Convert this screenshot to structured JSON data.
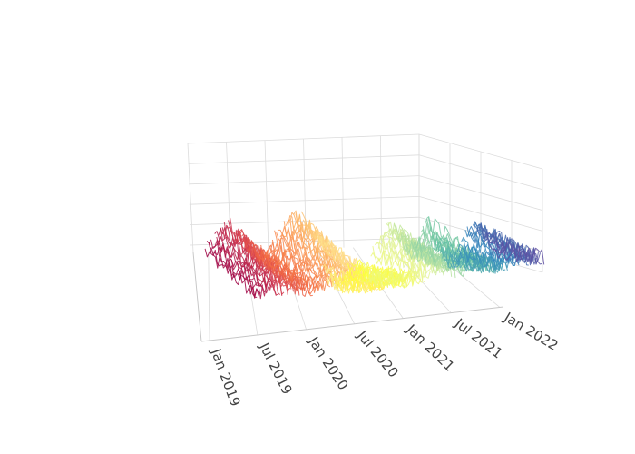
{
  "chart_data": {
    "type": "line",
    "projection": "3d",
    "x_axis_tick_labels": [
      "Jan 2019",
      "Jul 2019",
      "Jan 2020",
      "Jul 2020",
      "Jan 2021",
      "Jul 2021",
      "Jan 2022"
    ],
    "x_range": [
      "2018-12-01",
      "2022-01-15"
    ],
    "colorscale": "Spectral",
    "colorscale_stops": [
      "#9e0142",
      "#d53e4f",
      "#f46d43",
      "#fdae61",
      "#fee08b",
      "#ffff33",
      "#e6f598",
      "#abdda4",
      "#66c2a5",
      "#3288bd",
      "#5e4fa2"
    ],
    "grid": true,
    "legend": "none",
    "series_start_range": [
      "2018-12-15",
      "2021-11-20"
    ],
    "series_length_weeks": 26,
    "series_count": 150,
    "peak_annotation": {
      "date": "2021-07-15",
      "relative_height": 1.0
    }
  }
}
